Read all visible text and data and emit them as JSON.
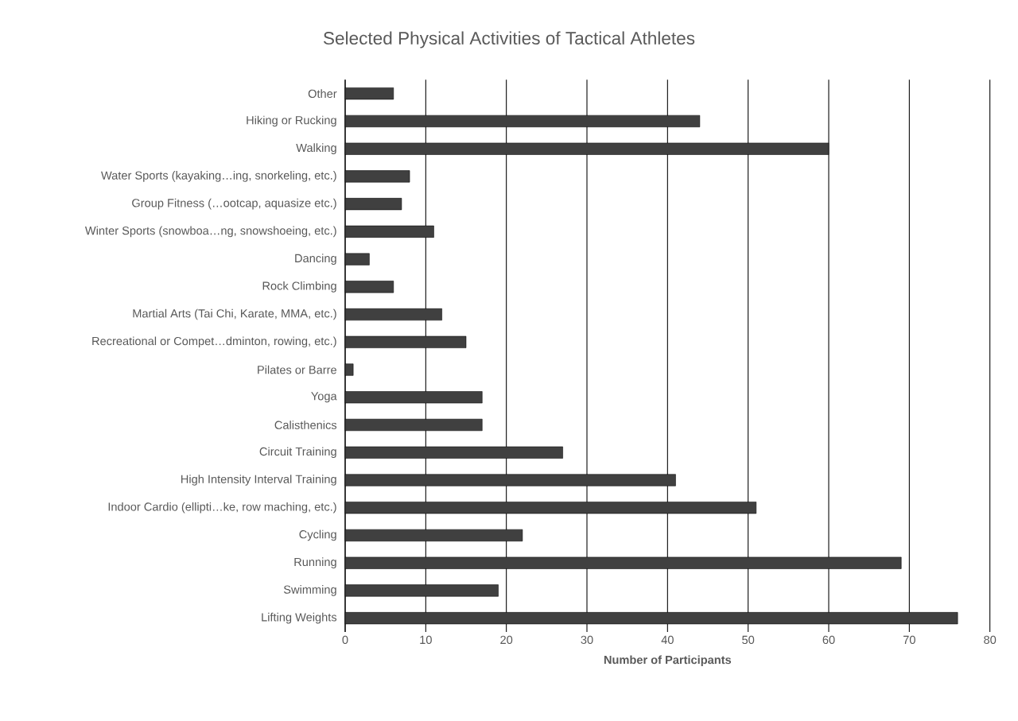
{
  "chart_data": {
    "type": "bar",
    "orientation": "horizontal",
    "title": "Selected Physical Activities of Tactical Athletes",
    "xlabel": "Number of Participants",
    "categories": [
      "Other",
      "Hiking or Rucking",
      "Walking",
      "Water Sports (kayaking…ing, snorkeling, etc.)",
      "Group Fitness (…ootcap, aquasize etc.)",
      "Winter Sports (snowboa…ng, snowshoeing, etc.)",
      "Dancing",
      "Rock Climbing",
      "Martial Arts (Tai Chi, Karate, MMA, etc.)",
      "Recreational or Compet…dminton, rowing, etc.)",
      "Pilates or Barre",
      "Yoga",
      "Calisthenics",
      "Circuit Training",
      "High Intensity Interval Training",
      "Indoor Cardio (ellipti…ke, row maching, etc.)",
      "Cycling",
      "Running",
      "Swimming",
      "Lifting Weights"
    ],
    "values": [
      6,
      44,
      60,
      8,
      7,
      11,
      3,
      6,
      12,
      15,
      1,
      17,
      17,
      27,
      41,
      51,
      22,
      69,
      19,
      76
    ],
    "color": "#404040",
    "xlim": [
      0,
      80
    ],
    "xticks": [
      0,
      10,
      20,
      30,
      40,
      50,
      60,
      70,
      80
    ],
    "grid": "x"
  }
}
